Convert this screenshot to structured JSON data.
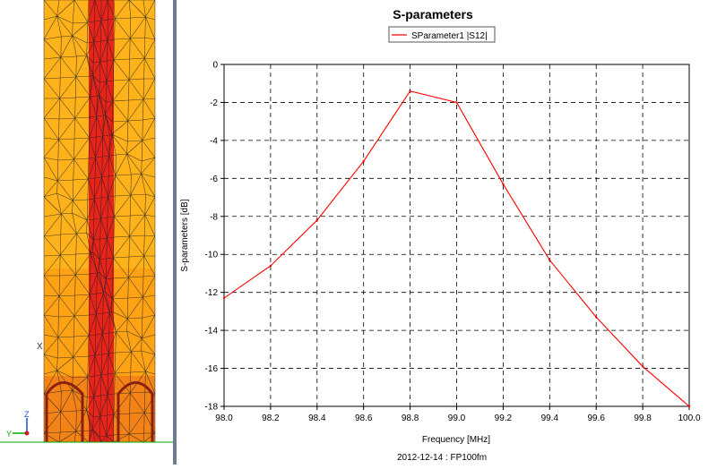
{
  "mesh_view": {
    "axis_labels": {
      "z": "Z",
      "y": "Y",
      "x": "X"
    }
  },
  "colors": {
    "series": "#ff0000",
    "grid": "#000000",
    "mesh_fill": "#ffb21a",
    "mesh_strip": "#e8231a",
    "mesh_lines": "#222222"
  },
  "chart_data": {
    "type": "line",
    "title": "S-parameters",
    "xlabel": "Frequency [MHz]",
    "ylabel": "S-parameters [dB]",
    "footer": "2012-12-14 : FP100fm",
    "xlim": [
      98.0,
      100.0
    ],
    "ylim": [
      -18,
      0
    ],
    "x_ticks": [
      "98.0",
      "98.2",
      "98.4",
      "98.6",
      "98.8",
      "99.0",
      "99.2",
      "99.4",
      "99.6",
      "99.8",
      "100.0"
    ],
    "y_ticks": [
      "0",
      "-2",
      "-4",
      "-6",
      "-8",
      "-10",
      "-12",
      "-14",
      "-16",
      "-18"
    ],
    "grid": true,
    "legend_position": "top-center",
    "series": [
      {
        "name": "SParameter1 |S12|",
        "x": [
          98.0,
          98.2,
          98.4,
          98.6,
          98.8,
          99.0,
          99.2,
          99.4,
          99.6,
          99.8,
          100.0
        ],
        "y": [
          -12.3,
          -10.6,
          -8.2,
          -5.1,
          -1.4,
          -2.0,
          -6.3,
          -10.3,
          -13.3,
          -15.9,
          -18.0
        ]
      }
    ]
  }
}
